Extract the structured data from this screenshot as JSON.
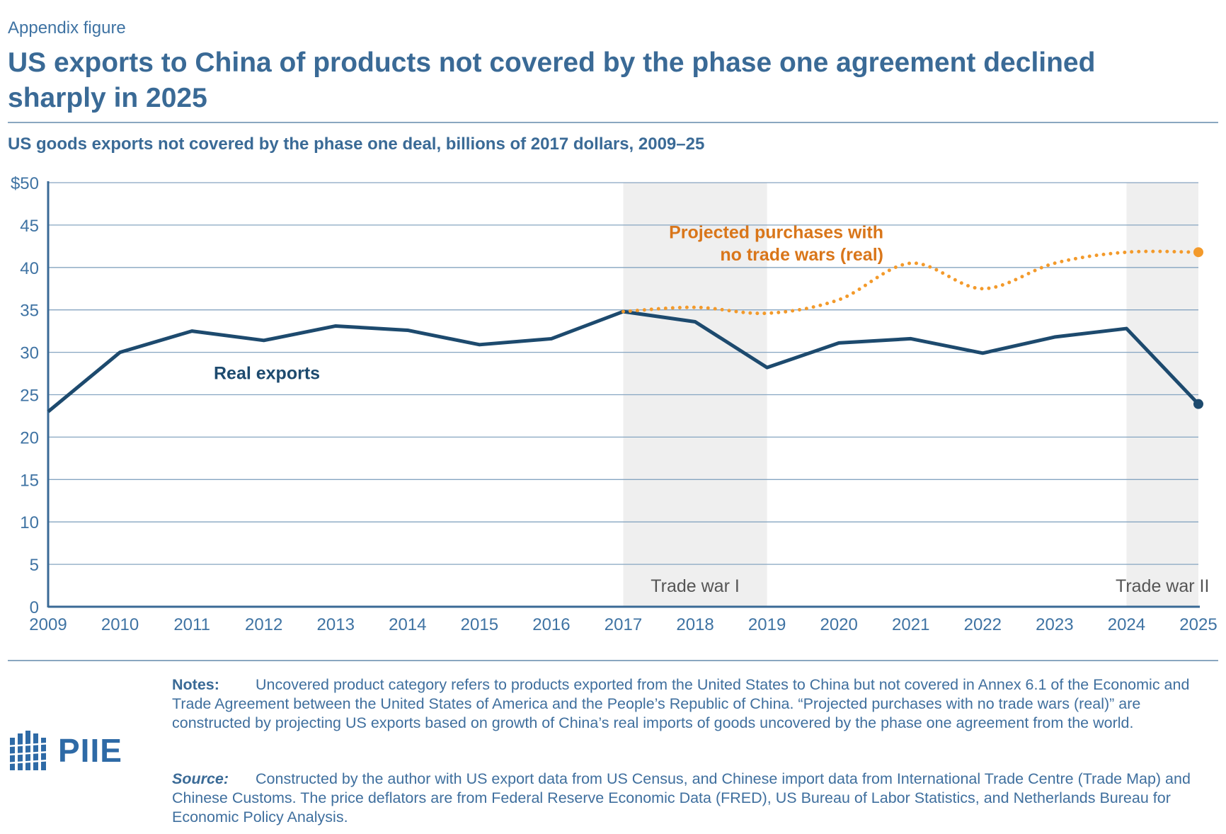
{
  "header": {
    "kicker": "Appendix figure",
    "title": "US exports to China of products not covered by the phase one agreement declined sharply in 2025",
    "subtitle": "US goods exports not covered by the phase one deal, billions of 2017 dollars, 2009–25"
  },
  "chart_data": {
    "type": "line",
    "title": "US goods exports not covered by the phase one deal, billions of 2017 dollars, 2009–25",
    "xlabel": "",
    "ylabel": "",
    "x": [
      2009,
      2010,
      2011,
      2012,
      2013,
      2014,
      2015,
      2016,
      2017,
      2018,
      2019,
      2020,
      2021,
      2022,
      2023,
      2024,
      2025
    ],
    "ylim": [
      0,
      50
    ],
    "y_ticks": [
      "0",
      "5",
      "10",
      "15",
      "20",
      "25",
      "30",
      "35",
      "40",
      "45",
      "$50"
    ],
    "grid": true,
    "series": [
      {
        "name": "Real exports",
        "label": "Real exports",
        "color": "#1d4a6e",
        "style": "solid",
        "x": [
          2009,
          2010,
          2011,
          2012,
          2013,
          2014,
          2015,
          2016,
          2017,
          2018,
          2019,
          2020,
          2021,
          2022,
          2023,
          2024,
          2025
        ],
        "values": [
          23.0,
          30.0,
          32.5,
          31.4,
          33.1,
          32.6,
          30.9,
          31.6,
          34.8,
          33.6,
          28.2,
          31.1,
          31.6,
          29.9,
          31.8,
          32.8,
          23.9
        ]
      },
      {
        "name": "Projected purchases with no trade wars (real)",
        "label_line1": "Projected purchases with",
        "label_line2": "no trade wars (real)",
        "color": "#f39a2b",
        "label_color": "#d9761a",
        "style": "dotted",
        "x": [
          2017,
          2018,
          2019,
          2020,
          2021,
          2022,
          2023,
          2024,
          2025
        ],
        "values": [
          34.8,
          35.3,
          34.6,
          36.2,
          40.5,
          37.5,
          40.5,
          41.8,
          41.8
        ]
      }
    ],
    "shaded_periods": [
      {
        "label": "Trade war I",
        "start": 2017,
        "end": 2019
      },
      {
        "label": "Trade war II",
        "start": 2024,
        "end": 2025
      }
    ],
    "colors": {
      "shade": "#efefef",
      "grid": "#86a5c1",
      "axis": "#3a6a96",
      "tick_text": "#3f73a3",
      "period_text": "#555555"
    }
  },
  "notes": {
    "notes_label": "Notes:",
    "notes_text": "Uncovered product category refers to products exported from the United States to China but not covered in Annex 6.1 of the Economic and Trade Agreement between the United States of America and the People’s Republic of China. “Projected purchases with no trade wars (real)” are constructed by projecting US exports based on growth of China’s real imports of goods uncovered by the phase one agreement from the world.",
    "source_label": "Source:",
    "source_text": "Constructed by the author with US export data from US Census, and Chinese import data from International Trade Centre (Trade Map) and Chinese Customs. The price deflators are from Federal Reserve Economic Data (FRED), US Bureau of Labor Statistics, and Netherlands Bureau for Economic Policy Analysis."
  },
  "logo": {
    "text": "PIIE"
  }
}
